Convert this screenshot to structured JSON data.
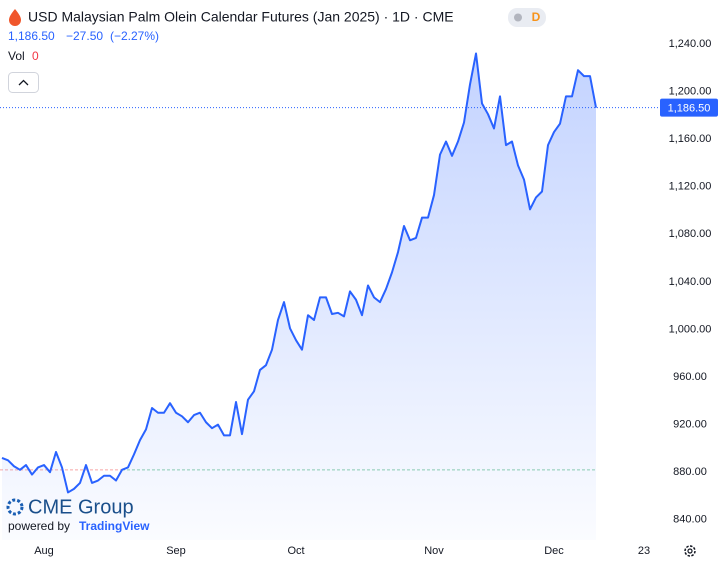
{
  "header": {
    "title": "USD Malaysian Palm Olein Calendar Futures (Jan 2025) · 1D · CME",
    "badge": "D",
    "last": "1,186.50",
    "change": "−27.50",
    "change_pct": "(−2.27%)",
    "vol_label": "Vol",
    "vol_value": "0",
    "logo": "CME Group",
    "powered_by": "powered by",
    "powered_brand": "TradingView"
  },
  "chart_data": {
    "type": "line",
    "categories": [
      null,
      null,
      null,
      null,
      null,
      null,
      null,
      "Aug",
      null,
      null,
      null,
      null,
      null,
      null,
      null,
      null,
      null,
      null,
      null,
      null,
      null,
      null,
      null,
      null,
      null,
      null,
      null,
      null,
      null,
      "Sep",
      null,
      null,
      null,
      null,
      null,
      null,
      null,
      null,
      null,
      null,
      null,
      null,
      null,
      null,
      null,
      null,
      null,
      null,
      null,
      "Oct",
      null,
      null,
      null,
      null,
      null,
      null,
      null,
      null,
      null,
      null,
      null,
      null,
      null,
      null,
      null,
      null,
      null,
      null,
      null,
      null,
      null,
      null,
      "Nov",
      null,
      null,
      null,
      null,
      null,
      null,
      null,
      null,
      null,
      null,
      null,
      null,
      null,
      null,
      null,
      null,
      null,
      null,
      null,
      "Dec",
      null,
      null,
      null,
      null,
      null,
      null,
      null,
      null,
      null,
      null,
      null,
      null,
      null,
      null,
      "23"
    ],
    "series": [
      {
        "color": "#2962ff",
        "values": [
          892,
          890,
          885,
          882,
          886,
          878,
          884,
          886,
          880,
          897,
          884,
          863,
          866,
          871,
          886,
          871,
          873,
          877,
          877,
          873,
          882,
          884,
          895,
          907,
          916,
          934,
          930,
          930,
          938,
          930,
          927,
          922,
          928,
          930,
          922,
          917,
          920,
          911,
          911,
          939,
          912,
          941,
          948,
          966,
          970,
          983,
          1008,
          1023,
          1001,
          991,
          983,
          1012,
          1008,
          1027,
          1027,
          1013,
          1014,
          1011,
          1032,
          1025,
          1012,
          1037,
          1027,
          1023,
          1034,
          1048,
          1065,
          1087,
          1075,
          1077,
          1094,
          1094,
          1113,
          1147,
          1158,
          1146,
          1158,
          1174,
          1206,
          1232,
          1190,
          1181,
          1169,
          1196,
          1155,
          1158,
          1138,
          1126,
          1101,
          1111,
          1116,
          1155,
          1166,
          1173,
          1196,
          1196,
          1218,
          1213,
          1213,
          1186.5,
          null,
          null,
          null,
          null,
          null,
          null,
          null,
          null
        ]
      }
    ],
    "baseline": 882,
    "ylim": [
      823,
      1277
    ],
    "yticks": [
      {
        "value": 840,
        "label": "840.00"
      },
      {
        "value": 880,
        "label": "880.00"
      },
      {
        "value": 920,
        "label": "920.00"
      },
      {
        "value": 960,
        "label": "960.00"
      },
      {
        "value": 1000,
        "label": "1,000.00"
      },
      {
        "value": 1040,
        "label": "1,040.00"
      },
      {
        "value": 1080,
        "label": "1,080.00"
      },
      {
        "value": 1120,
        "label": "1,120.00"
      },
      {
        "value": 1160,
        "label": "1,160.00"
      },
      {
        "value": 1200,
        "label": "1,200.00"
      },
      {
        "value": 1240,
        "label": "1,240.00"
      }
    ],
    "grid": false
  }
}
